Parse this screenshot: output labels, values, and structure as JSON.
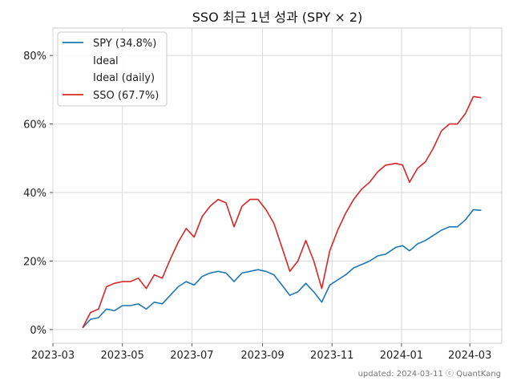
{
  "chart_data": {
    "type": "line",
    "title": "SSO 최근 1년 성과 (SPY × 2)",
    "xlabel": "",
    "ylabel": "",
    "x_ticks": [
      "2023-03",
      "2023-05",
      "2023-07",
      "2023-09",
      "2023-11",
      "2024-01",
      "2024-03"
    ],
    "y_ticks": [
      "0%",
      "20%",
      "40%",
      "60%",
      "80%"
    ],
    "xlim": [
      "2023-03-01",
      "2024-03-29"
    ],
    "ylim": [
      -4,
      88
    ],
    "grid": true,
    "legend_position": "top-left",
    "legend": [
      "SPY (34.8%)",
      "Ideal",
      "Ideal (daily)",
      "SSO (67.7%)"
    ],
    "footer": "updated: 2024-03-11 ⓒ QuantKang",
    "colors": {
      "spy": "#1f77b4",
      "sso": "#d62728"
    },
    "series": [
      {
        "name": "SPY (34.8%)",
        "x": [
          "2023-03-27",
          "2023-04-03",
          "2023-04-10",
          "2023-04-17",
          "2023-04-24",
          "2023-05-01",
          "2023-05-08",
          "2023-05-15",
          "2023-05-22",
          "2023-05-29",
          "2023-06-05",
          "2023-06-12",
          "2023-06-19",
          "2023-06-26",
          "2023-07-03",
          "2023-07-10",
          "2023-07-17",
          "2023-07-24",
          "2023-07-31",
          "2023-08-07",
          "2023-08-14",
          "2023-08-21",
          "2023-08-28",
          "2023-09-04",
          "2023-09-11",
          "2023-09-18",
          "2023-09-25",
          "2023-10-02",
          "2023-10-09",
          "2023-10-16",
          "2023-10-23",
          "2023-10-30",
          "2023-11-06",
          "2023-11-13",
          "2023-11-20",
          "2023-11-27",
          "2023-12-04",
          "2023-12-11",
          "2023-12-18",
          "2023-12-27",
          "2024-01-02",
          "2024-01-08",
          "2024-01-15",
          "2024-01-22",
          "2024-01-29",
          "2024-02-05",
          "2024-02-12",
          "2024-02-19",
          "2024-02-26",
          "2024-03-04",
          "2024-03-11"
        ],
        "values": [
          0.5,
          3,
          3.5,
          6,
          5.5,
          7,
          7,
          7.5,
          6,
          8,
          7.5,
          10,
          12.5,
          14,
          13,
          15.5,
          16.5,
          17,
          16.5,
          14,
          16.5,
          17,
          17.5,
          17,
          16,
          13,
          10,
          11,
          13.5,
          11,
          8,
          13,
          14.5,
          16,
          18,
          19,
          20,
          21.5,
          22,
          24,
          24.5,
          23,
          25,
          26,
          27.5,
          29,
          30,
          30,
          32,
          35,
          34.8
        ]
      },
      {
        "name": "SSO (67.7%)",
        "x": [
          "2023-03-27",
          "2023-04-03",
          "2023-04-10",
          "2023-04-17",
          "2023-04-24",
          "2023-05-01",
          "2023-05-08",
          "2023-05-15",
          "2023-05-22",
          "2023-05-29",
          "2023-06-05",
          "2023-06-12",
          "2023-06-19",
          "2023-06-26",
          "2023-07-03",
          "2023-07-10",
          "2023-07-17",
          "2023-07-24",
          "2023-07-31",
          "2023-08-07",
          "2023-08-14",
          "2023-08-21",
          "2023-08-28",
          "2023-09-04",
          "2023-09-11",
          "2023-09-18",
          "2023-09-25",
          "2023-10-02",
          "2023-10-09",
          "2023-10-16",
          "2023-10-23",
          "2023-10-30",
          "2023-11-06",
          "2023-11-13",
          "2023-11-20",
          "2023-11-27",
          "2023-12-04",
          "2023-12-11",
          "2023-12-18",
          "2023-12-27",
          "2024-01-02",
          "2024-01-08",
          "2024-01-15",
          "2024-01-22",
          "2024-01-29",
          "2024-02-05",
          "2024-02-12",
          "2024-02-19",
          "2024-02-26",
          "2024-03-04",
          "2024-03-11"
        ],
        "values": [
          0.5,
          5,
          6,
          12.5,
          13.5,
          14,
          14,
          15,
          12,
          16,
          15,
          20.5,
          25.5,
          29.5,
          27,
          33,
          36,
          38,
          37,
          30,
          36,
          38,
          38,
          35,
          31,
          24,
          17,
          20,
          26,
          20,
          12,
          23,
          29,
          34,
          38,
          41,
          43,
          46,
          48,
          48.5,
          48,
          43,
          47,
          49,
          53,
          58,
          60,
          60,
          63,
          68,
          67.7
        ]
      }
    ]
  }
}
